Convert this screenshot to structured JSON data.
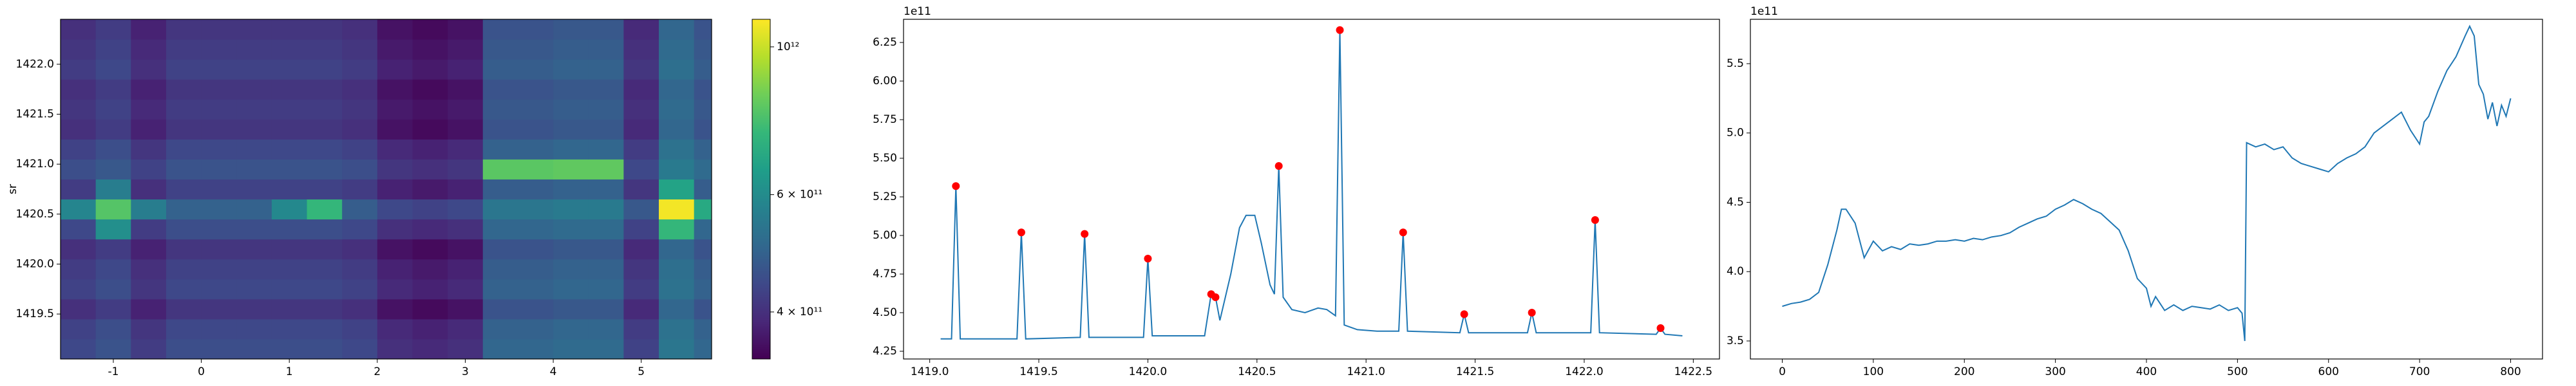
{
  "chart_data": [
    {
      "type": "heatmap",
      "ylabel": "sr",
      "colormap": "viridis",
      "color_scale": "log",
      "x": [
        -1.4,
        -1.0,
        -0.6,
        -0.2,
        0.2,
        0.6,
        1.0,
        1.4,
        1.8,
        2.2,
        2.6,
        3.0,
        3.4,
        3.8,
        4.2,
        4.6,
        5.0,
        5.4,
        5.8
      ],
      "y": [
        1419.15,
        1419.35,
        1419.55,
        1419.75,
        1419.95,
        1420.15,
        1420.35,
        1420.55,
        1420.75,
        1420.95,
        1421.15,
        1421.35,
        1421.55,
        1421.75,
        1421.95,
        1422.15,
        1422.35
      ],
      "values": [
        [
          440000000000.0,
          460000000000.0,
          420000000000.0,
          450000000000.0,
          450000000000.0,
          450000000000.0,
          450000000000.0,
          450000000000.0,
          440000000000.0,
          400000000000.0,
          390000000000.0,
          400000000000.0,
          500000000000.0,
          500000000000.0,
          510000000000.0,
          510000000000.0,
          430000000000.0,
          540000000000.0,
          500000000000.0
        ],
        [
          430000000000.0,
          450000000000.0,
          410000000000.0,
          440000000000.0,
          440000000000.0,
          440000000000.0,
          440000000000.0,
          440000000000.0,
          430000000000.0,
          390000000000.0,
          380000000000.0,
          390000000000.0,
          490000000000.0,
          490000000000.0,
          500000000000.0,
          500000000000.0,
          420000000000.0,
          530000000000.0,
          490000000000.0
        ],
        [
          400000000000.0,
          420000000000.0,
          380000000000.0,
          410000000000.0,
          410000000000.0,
          410000000000.0,
          410000000000.0,
          410000000000.0,
          400000000000.0,
          360000000000.0,
          350000000000.0,
          360000000000.0,
          460000000000.0,
          460000000000.0,
          470000000000.0,
          470000000000.0,
          390000000000.0,
          500000000000.0,
          460000000000.0
        ],
        [
          430000000000.0,
          450000000000.0,
          410000000000.0,
          440000000000.0,
          440000000000.0,
          440000000000.0,
          440000000000.0,
          440000000000.0,
          430000000000.0,
          390000000000.0,
          380000000000.0,
          390000000000.0,
          490000000000.0,
          490000000000.0,
          500000000000.0,
          500000000000.0,
          420000000000.0,
          530000000000.0,
          490000000000.0
        ],
        [
          420000000000.0,
          440000000000.0,
          400000000000.0,
          430000000000.0,
          430000000000.0,
          430000000000.0,
          430000000000.0,
          430000000000.0,
          420000000000.0,
          380000000000.0,
          370000000000.0,
          380000000000.0,
          480000000000.0,
          480000000000.0,
          490000000000.0,
          490000000000.0,
          410000000000.0,
          520000000000.0,
          480000000000.0
        ],
        [
          400000000000.0,
          420000000000.0,
          380000000000.0,
          410000000000.0,
          410000000000.0,
          410000000000.0,
          410000000000.0,
          410000000000.0,
          400000000000.0,
          360000000000.0,
          350000000000.0,
          360000000000.0,
          460000000000.0,
          460000000000.0,
          470000000000.0,
          470000000000.0,
          390000000000.0,
          500000000000.0,
          460000000000.0
        ],
        [
          440000000000.0,
          610000000000.0,
          420000000000.0,
          450000000000.0,
          450000000000.0,
          450000000000.0,
          450000000000.0,
          450000000000.0,
          440000000000.0,
          400000000000.0,
          390000000000.0,
          400000000000.0,
          500000000000.0,
          500000000000.0,
          510000000000.0,
          510000000000.0,
          430000000000.0,
          740000000000.0,
          500000000000.0
        ],
        [
          580000000000.0,
          800000000000.0,
          560000000000.0,
          490000000000.0,
          490000000000.0,
          490000000000.0,
          590000000000.0,
          740000000000.0,
          480000000000.0,
          440000000000.0,
          430000000000.0,
          440000000000.0,
          540000000000.0,
          540000000000.0,
          550000000000.0,
          550000000000.0,
          470000000000.0,
          1080000000000.0,
          690000000000.0
        ],
        [
          420000000000.0,
          560000000000.0,
          400000000000.0,
          430000000000.0,
          430000000000.0,
          430000000000.0,
          430000000000.0,
          430000000000.0,
          420000000000.0,
          380000000000.0,
          370000000000.0,
          380000000000.0,
          480000000000.0,
          480000000000.0,
          490000000000.0,
          490000000000.0,
          410000000000.0,
          670000000000.0,
          480000000000.0
        ],
        [
          450000000000.0,
          470000000000.0,
          430000000000.0,
          460000000000.0,
          460000000000.0,
          460000000000.0,
          460000000000.0,
          460000000000.0,
          450000000000.0,
          410000000000.0,
          400000000000.0,
          410000000000.0,
          810000000000.0,
          810000000000.0,
          820000000000.0,
          820000000000.0,
          440000000000.0,
          550000000000.0,
          510000000000.0
        ],
        [
          430000000000.0,
          450000000000.0,
          410000000000.0,
          440000000000.0,
          440000000000.0,
          440000000000.0,
          440000000000.0,
          440000000000.0,
          430000000000.0,
          390000000000.0,
          380000000000.0,
          390000000000.0,
          490000000000.0,
          490000000000.0,
          500000000000.0,
          500000000000.0,
          420000000000.0,
          530000000000.0,
          490000000000.0
        ],
        [
          400000000000.0,
          420000000000.0,
          380000000000.0,
          410000000000.0,
          410000000000.0,
          410000000000.0,
          410000000000.0,
          410000000000.0,
          400000000000.0,
          360000000000.0,
          350000000000.0,
          360000000000.0,
          460000000000.0,
          460000000000.0,
          470000000000.0,
          470000000000.0,
          390000000000.0,
          500000000000.0,
          460000000000.0
        ],
        [
          410000000000.0,
          430000000000.0,
          390000000000.0,
          420000000000.0,
          420000000000.0,
          420000000000.0,
          420000000000.0,
          420000000000.0,
          410000000000.0,
          370000000000.0,
          360000000000.0,
          370000000000.0,
          470000000000.0,
          470000000000.0,
          480000000000.0,
          480000000000.0,
          400000000000.0,
          510000000000.0,
          470000000000.0
        ],
        [
          400000000000.0,
          420000000000.0,
          380000000000.0,
          410000000000.0,
          410000000000.0,
          410000000000.0,
          410000000000.0,
          410000000000.0,
          400000000000.0,
          360000000000.0,
          350000000000.0,
          360000000000.0,
          460000000000.0,
          460000000000.0,
          470000000000.0,
          470000000000.0,
          390000000000.0,
          500000000000.0,
          460000000000.0
        ],
        [
          420000000000.0,
          440000000000.0,
          400000000000.0,
          430000000000.0,
          430000000000.0,
          430000000000.0,
          430000000000.0,
          430000000000.0,
          420000000000.0,
          380000000000.0,
          370000000000.0,
          380000000000.0,
          480000000000.0,
          480000000000.0,
          490000000000.0,
          490000000000.0,
          410000000000.0,
          520000000000.0,
          480000000000.0
        ],
        [
          410000000000.0,
          430000000000.0,
          390000000000.0,
          420000000000.0,
          420000000000.0,
          420000000000.0,
          420000000000.0,
          420000000000.0,
          410000000000.0,
          370000000000.0,
          360000000000.0,
          370000000000.0,
          470000000000.0,
          470000000000.0,
          480000000000.0,
          480000000000.0,
          400000000000.0,
          510000000000.0,
          470000000000.0
        ],
        [
          400000000000.0,
          420000000000.0,
          380000000000.0,
          410000000000.0,
          410000000000.0,
          410000000000.0,
          410000000000.0,
          410000000000.0,
          400000000000.0,
          360000000000.0,
          350000000000.0,
          360000000000.0,
          460000000000.0,
          460000000000.0,
          470000000000.0,
          470000000000.0,
          390000000000.0,
          500000000000.0,
          460000000000.0
        ]
      ],
      "xlim": [
        -1.6,
        5.8
      ],
      "ylim": [
        1419.05,
        1422.45
      ],
      "xticks": [
        -1,
        0,
        1,
        2,
        3,
        4,
        5
      ],
      "yticks": [
        1419.5,
        {
          "value": 1420,
          "label": "1420.0"
        },
        1420.5,
        {
          "value": 1421,
          "label": "1421.0"
        },
        1421.5,
        {
          "value": 1422,
          "label": "1422.0"
        }
      ],
      "clim": [
        340000000000.0,
        1100000000000.0
      ],
      "cticks": [
        {
          "value": 400000000000.0,
          "label": "4 × 10¹¹"
        },
        {
          "value": 600000000000.0,
          "label": "6 × 10¹¹"
        },
        {
          "value": 1000000000000.0,
          "label": "10¹²"
        }
      ]
    },
    {
      "type": "line",
      "y_offset_label": "1e11",
      "x": [
        1419.05,
        1419.1,
        1419.12,
        1419.14,
        1419.4,
        1419.42,
        1419.44,
        1419.69,
        1419.71,
        1419.73,
        1419.98,
        1420.0,
        1420.02,
        1420.26,
        1420.29,
        1420.31,
        1420.33,
        1420.38,
        1420.42,
        1420.45,
        1420.49,
        1420.52,
        1420.56,
        1420.58,
        1420.6,
        1420.62,
        1420.66,
        1420.72,
        1420.78,
        1420.82,
        1420.86,
        1420.88,
        1420.9,
        1420.96,
        1421.05,
        1421.15,
        1421.17,
        1421.19,
        1421.43,
        1421.45,
        1421.47,
        1421.74,
        1421.76,
        1421.78,
        1422.03,
        1422.05,
        1422.07,
        1422.33,
        1422.35,
        1422.37,
        1422.45
      ],
      "series": [
        {
          "color": "#1f77b4",
          "values": [
            4.33,
            4.33,
            5.32,
            4.33,
            4.33,
            5.02,
            4.33,
            4.34,
            5.01,
            4.34,
            4.34,
            4.85,
            4.35,
            4.35,
            4.62,
            4.6,
            4.45,
            4.75,
            5.05,
            5.13,
            5.13,
            4.95,
            4.68,
            4.62,
            5.45,
            4.6,
            4.52,
            4.5,
            4.53,
            4.52,
            4.48,
            6.33,
            4.42,
            4.39,
            4.38,
            4.38,
            5.02,
            4.38,
            4.37,
            4.49,
            4.37,
            4.37,
            4.5,
            4.37,
            4.37,
            5.1,
            4.37,
            4.36,
            4.4,
            4.36,
            4.35
          ]
        }
      ],
      "markers": {
        "color": "#ff0000",
        "x": [
          1419.12,
          1419.42,
          1419.71,
          1420.0,
          1420.29,
          1420.31,
          1420.6,
          1420.88,
          1421.17,
          1421.45,
          1421.76,
          1422.05,
          1422.35
        ],
        "values": [
          5.32,
          5.02,
          5.01,
          4.85,
          4.62,
          4.6,
          5.45,
          6.33,
          5.02,
          4.49,
          4.5,
          5.1,
          4.4
        ]
      },
      "xlim": [
        1418.88,
        1422.62
      ],
      "ylim": [
        4.2,
        6.4
      ],
      "xticks": [
        {
          "value": 1419,
          "label": "1419.0"
        },
        1419.5,
        {
          "value": 1420,
          "label": "1420.0"
        },
        1420.5,
        {
          "value": 1421,
          "label": "1421.0"
        },
        1421.5,
        {
          "value": 1422,
          "label": "1422.0"
        },
        1422.5
      ],
      "yticks": [
        4.25,
        {
          "value": 4.5,
          "label": "4.50"
        },
        4.75,
        {
          "value": 5,
          "label": "5.00"
        },
        5.25,
        {
          "value": 5.5,
          "label": "5.50"
        },
        5.75,
        {
          "value": 6,
          "label": "6.00"
        },
        6.25
      ]
    },
    {
      "type": "line",
      "y_offset_label": "1e11",
      "x": [
        0,
        10,
        20,
        30,
        40,
        50,
        60,
        65,
        70,
        80,
        90,
        100,
        110,
        120,
        130,
        140,
        150,
        160,
        170,
        180,
        190,
        200,
        210,
        220,
        230,
        240,
        250,
        260,
        270,
        280,
        290,
        300,
        310,
        320,
        330,
        340,
        350,
        360,
        370,
        380,
        390,
        400,
        405,
        410,
        420,
        430,
        440,
        450,
        460,
        470,
        480,
        490,
        500,
        505,
        508,
        510,
        520,
        530,
        540,
        550,
        560,
        570,
        580,
        590,
        600,
        610,
        620,
        630,
        640,
        650,
        660,
        670,
        680,
        690,
        700,
        705,
        710,
        720,
        730,
        740,
        750,
        755,
        760,
        765,
        770,
        775,
        780,
        785,
        790,
        795,
        800
      ],
      "series": [
        {
          "color": "#1f77b4",
          "values": [
            3.75,
            3.77,
            3.78,
            3.8,
            3.85,
            4.05,
            4.3,
            4.45,
            4.45,
            4.35,
            4.1,
            4.22,
            4.15,
            4.18,
            4.16,
            4.2,
            4.19,
            4.2,
            4.22,
            4.22,
            4.23,
            4.22,
            4.24,
            4.23,
            4.25,
            4.26,
            4.28,
            4.32,
            4.35,
            4.38,
            4.4,
            4.45,
            4.48,
            4.52,
            4.49,
            4.45,
            4.42,
            4.36,
            4.3,
            4.15,
            3.95,
            3.88,
            3.75,
            3.82,
            3.72,
            3.76,
            3.72,
            3.75,
            3.74,
            3.73,
            3.76,
            3.72,
            3.74,
            3.7,
            3.5,
            4.93,
            4.9,
            4.92,
            4.88,
            4.9,
            4.82,
            4.78,
            4.76,
            4.74,
            4.72,
            4.78,
            4.82,
            4.85,
            4.9,
            5.0,
            5.05,
            5.1,
            5.15,
            5.02,
            4.92,
            5.08,
            5.12,
            5.3,
            5.45,
            5.55,
            5.7,
            5.77,
            5.7,
            5.35,
            5.28,
            5.1,
            5.22,
            5.05,
            5.2,
            5.12,
            5.25
          ]
        }
      ],
      "xlim": [
        -35,
        835
      ],
      "ylim": [
        3.37,
        5.82
      ],
      "xticks": [
        0,
        100,
        200,
        300,
        400,
        500,
        600,
        700,
        800
      ],
      "yticks": [
        3.5,
        {
          "value": 4,
          "label": "4.0"
        },
        4.5,
        {
          "value": 5,
          "label": "5.0"
        },
        5.5
      ]
    }
  ]
}
